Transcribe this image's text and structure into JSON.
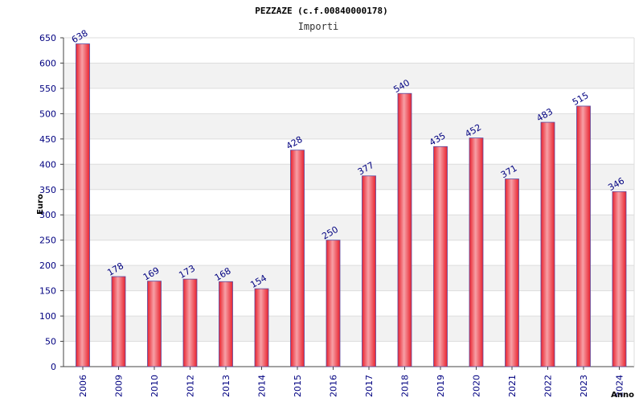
{
  "chart_data": {
    "type": "bar",
    "title": "PEZZAZE (c.f.00840000178)",
    "subtitle": "Importi",
    "xlabel": "Anno",
    "ylabel": "Euro",
    "categories": [
      "2006",
      "2009",
      "2010",
      "2012",
      "2013",
      "2014",
      "2015",
      "2016",
      "2017",
      "2018",
      "2019",
      "2020",
      "2021",
      "2022",
      "2023",
      "2024"
    ],
    "values": [
      638,
      178,
      169,
      173,
      168,
      154,
      428,
      250,
      377,
      540,
      435,
      452,
      371,
      483,
      515,
      346
    ],
    "ylim": [
      0,
      650
    ],
    "yticks": [
      0,
      50,
      100,
      150,
      200,
      250,
      300,
      350,
      400,
      450,
      500,
      550,
      600,
      650
    ],
    "grid": true,
    "bar_color": "#e8222e",
    "bar_highlight_color": "#f7a0a6",
    "bar_edge_color": "#5a4aa0",
    "band_color": "#f2f2f2",
    "tick_color": "#000080"
  }
}
